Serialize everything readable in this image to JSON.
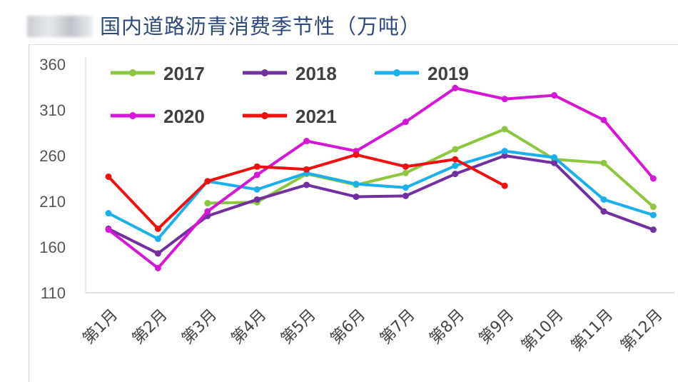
{
  "chart_data": {
    "type": "line",
    "title": "国内道路沥青消费季节性（万吨）",
    "xlabel": "",
    "ylabel": "",
    "categories": [
      "第1月",
      "第2月",
      "第3月",
      "第4月",
      "第5月",
      "第6月",
      "第7月",
      "第8月",
      "第9月",
      "第10月",
      "第11月",
      "第12月"
    ],
    "ylim": [
      110,
      360
    ],
    "yticks": [
      110,
      160,
      210,
      260,
      310,
      360
    ],
    "grid": false,
    "legend": "top-left",
    "series": [
      {
        "name": "2017",
        "color": "#8dc63f",
        "values": [
          null,
          null,
          208,
          209,
          240,
          228,
          241,
          267,
          289,
          256,
          252,
          204
        ]
      },
      {
        "name": "2018",
        "color": "#7030a0",
        "values": [
          180,
          153,
          194,
          212,
          228,
          215,
          216,
          240,
          260,
          252,
          199,
          179
        ]
      },
      {
        "name": "2019",
        "color": "#1ab0ec",
        "values": [
          197,
          169,
          232,
          223,
          241,
          229,
          225,
          249,
          265,
          258,
          212,
          195
        ]
      },
      {
        "name": "2020",
        "color": "#d516d5",
        "values": [
          179,
          137,
          199,
          239,
          276,
          265,
          297,
          334,
          322,
          326,
          299,
          235
        ]
      },
      {
        "name": "2021",
        "color": "#f01010",
        "values": [
          237,
          180,
          232,
          248,
          245,
          261,
          248,
          256,
          227,
          null,
          null,
          null
        ]
      }
    ]
  }
}
